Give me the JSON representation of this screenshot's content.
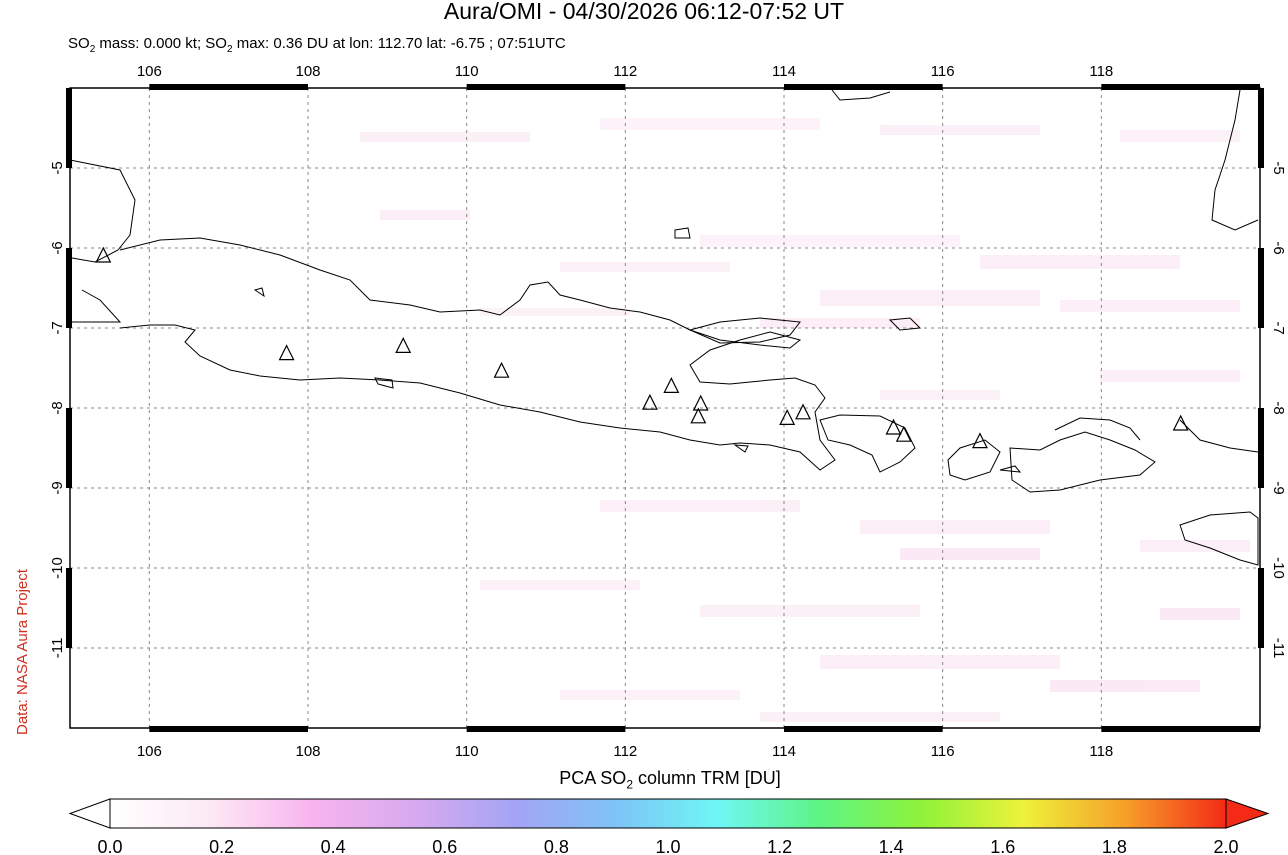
{
  "header": {
    "title": "Aura/OMI - 04/30/2026 06:12-07:52 UT",
    "subtitle_prefix": "SO",
    "subtitle_sub": "2",
    "subtitle_mid": " mass: 0.000 kt; SO",
    "subtitle_sub2": "2",
    "subtitle_rest": " max: 0.36 DU at lon: 112.70 lat: -6.75 ; 07:51UTC"
  },
  "credit": "Data: NASA Aura Project",
  "map": {
    "lon_range": [
      105.0,
      120.0
    ],
    "lat_range": [
      -12.0,
      -4.0
    ],
    "lon_ticks": [
      106,
      108,
      110,
      112,
      114,
      116,
      118
    ],
    "lon_tick_labels": [
      "106",
      "108",
      "110",
      "112",
      "114",
      "116",
      "118"
    ],
    "lat_ticks": [
      -5,
      -6,
      -7,
      -8,
      -9,
      -10,
      -11
    ],
    "lat_tick_labels": [
      "-5",
      "-6",
      "-7",
      "-8",
      "-9",
      "-10",
      "-11"
    ],
    "grid": "dotted",
    "volcanoes": [
      {
        "lon": 105.42,
        "lat": -6.1
      },
      {
        "lon": 107.73,
        "lat": -7.32
      },
      {
        "lon": 109.2,
        "lat": -7.23
      },
      {
        "lon": 110.44,
        "lat": -7.54
      },
      {
        "lon": 112.31,
        "lat": -7.94
      },
      {
        "lon": 112.58,
        "lat": -7.73
      },
      {
        "lon": 112.95,
        "lat": -7.95
      },
      {
        "lon": 112.92,
        "lat": -8.11
      },
      {
        "lon": 114.04,
        "lat": -8.13
      },
      {
        "lon": 114.24,
        "lat": -8.06
      },
      {
        "lon": 115.38,
        "lat": -8.25
      },
      {
        "lon": 115.51,
        "lat": -8.34
      },
      {
        "lon": 116.47,
        "lat": -8.42
      },
      {
        "lon": 119.0,
        "lat": -8.2
      }
    ]
  },
  "colorbar": {
    "title_prefix": "PCA SO",
    "title_sub": "2",
    "title_rest": " column TRM [DU]",
    "range": [
      0.0,
      2.0
    ],
    "tick_labels": [
      "0.0",
      "0.2",
      "0.4",
      "0.6",
      "0.8",
      "1.0",
      "1.2",
      "1.4",
      "1.6",
      "1.8",
      "2.0"
    ],
    "colors": [
      "#ffffff",
      "#fce8f4",
      "#f7b4ee",
      "#d7aaef",
      "#a4a4f4",
      "#7ec4f7",
      "#6ff7f4",
      "#5ef484",
      "#8ff23a",
      "#eef23a",
      "#f6a02a",
      "#f42a16"
    ]
  }
}
